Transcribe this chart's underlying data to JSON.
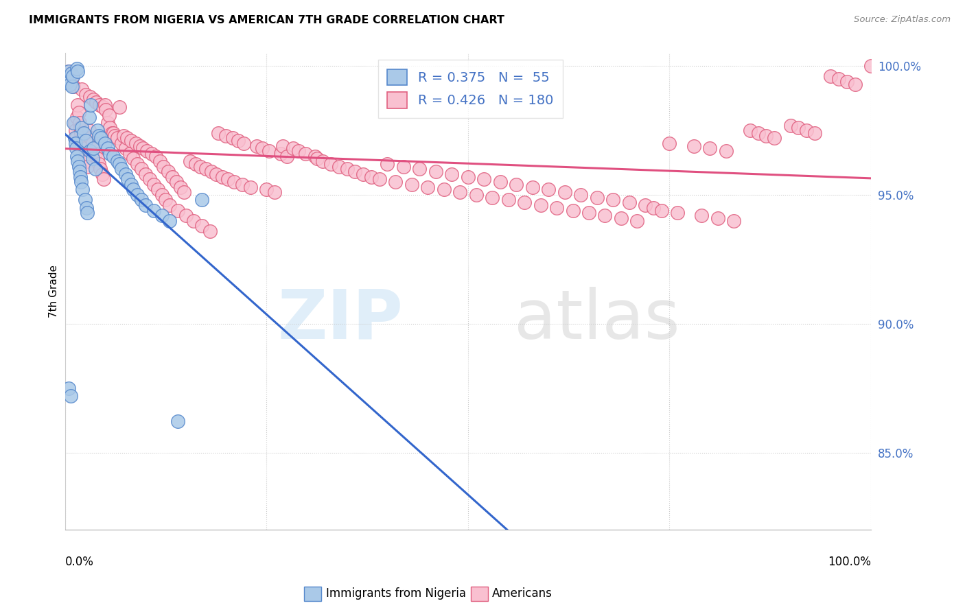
{
  "title": "IMMIGRANTS FROM NIGERIA VS AMERICAN 7TH GRADE CORRELATION CHART",
  "source": "Source: ZipAtlas.com",
  "ylabel": "7th Grade",
  "xlim": [
    0.0,
    1.0
  ],
  "ylim": [
    0.82,
    1.005
  ],
  "yticks": [
    0.85,
    0.9,
    0.95,
    1.0
  ],
  "ytick_labels": [
    "85.0%",
    "90.0%",
    "95.0%",
    "100.0%"
  ],
  "ytick_color": "#4472c4",
  "nigeria_R": 0.375,
  "nigeria_N": 55,
  "american_R": 0.426,
  "american_N": 180,
  "nigeria_color": "#aac9e8",
  "american_color": "#f9c0d0",
  "nigeria_edge_color": "#5588cc",
  "american_edge_color": "#e06080",
  "nigeria_line_color": "#3366cc",
  "american_line_color": "#e05080",
  "legend_label_nigeria": "Immigrants from Nigeria",
  "legend_label_american": "Americans",
  "nigeria_scatter_x": [
    0.003,
    0.005,
    0.005,
    0.006,
    0.007,
    0.008,
    0.009,
    0.01,
    0.011,
    0.012,
    0.013,
    0.014,
    0.015,
    0.015,
    0.016,
    0.016,
    0.017,
    0.018,
    0.019,
    0.02,
    0.021,
    0.022,
    0.023,
    0.025,
    0.026,
    0.027,
    0.028,
    0.03,
    0.031,
    0.032,
    0.034,
    0.035,
    0.038,
    0.04,
    0.042,
    0.045,
    0.05,
    0.053,
    0.056,
    0.06,
    0.065,
    0.068,
    0.07,
    0.075,
    0.078,
    0.082,
    0.085,
    0.09,
    0.095,
    0.1,
    0.11,
    0.12,
    0.13,
    0.14,
    0.17
  ],
  "nigeria_scatter_y": [
    0.994,
    0.998,
    0.875,
    0.993,
    0.872,
    0.997,
    0.992,
    0.996,
    0.978,
    0.972,
    0.97,
    0.968,
    0.965,
    0.999,
    0.963,
    0.998,
    0.961,
    0.959,
    0.957,
    0.955,
    0.976,
    0.952,
    0.974,
    0.948,
    0.971,
    0.945,
    0.943,
    0.98,
    0.967,
    0.985,
    0.964,
    0.968,
    0.96,
    0.975,
    0.973,
    0.972,
    0.97,
    0.968,
    0.966,
    0.965,
    0.963,
    0.962,
    0.96,
    0.958,
    0.956,
    0.954,
    0.952,
    0.95,
    0.948,
    0.946,
    0.944,
    0.942,
    0.94,
    0.862,
    0.948
  ],
  "american_scatter_x": [
    0.005,
    0.006,
    0.008,
    0.009,
    0.01,
    0.011,
    0.012,
    0.013,
    0.014,
    0.015,
    0.016,
    0.017,
    0.018,
    0.019,
    0.02,
    0.021,
    0.022,
    0.023,
    0.024,
    0.025,
    0.026,
    0.027,
    0.028,
    0.03,
    0.031,
    0.032,
    0.034,
    0.035,
    0.036,
    0.038,
    0.039,
    0.04,
    0.042,
    0.043,
    0.044,
    0.046,
    0.047,
    0.048,
    0.05,
    0.051,
    0.053,
    0.055,
    0.056,
    0.058,
    0.06,
    0.062,
    0.065,
    0.068,
    0.07,
    0.073,
    0.075,
    0.077,
    0.08,
    0.082,
    0.085,
    0.088,
    0.09,
    0.093,
    0.095,
    0.097,
    0.1,
    0.102,
    0.105,
    0.108,
    0.11,
    0.113,
    0.115,
    0.118,
    0.12,
    0.122,
    0.125,
    0.128,
    0.13,
    0.133,
    0.138,
    0.14,
    0.143,
    0.148,
    0.15,
    0.155,
    0.16,
    0.162,
    0.168,
    0.17,
    0.175,
    0.18,
    0.182,
    0.188,
    0.19,
    0.195,
    0.2,
    0.202,
    0.208,
    0.21,
    0.215,
    0.22,
    0.222,
    0.23,
    0.238,
    0.245,
    0.25,
    0.253,
    0.26,
    0.268,
    0.27,
    0.275,
    0.283,
    0.29,
    0.298,
    0.31,
    0.313,
    0.32,
    0.33,
    0.34,
    0.35,
    0.36,
    0.37,
    0.38,
    0.39,
    0.4,
    0.41,
    0.42,
    0.43,
    0.44,
    0.45,
    0.46,
    0.47,
    0.48,
    0.49,
    0.5,
    0.51,
    0.52,
    0.53,
    0.54,
    0.55,
    0.56,
    0.57,
    0.58,
    0.59,
    0.6,
    0.61,
    0.62,
    0.63,
    0.64,
    0.65,
    0.66,
    0.67,
    0.68,
    0.69,
    0.7,
    0.71,
    0.72,
    0.73,
    0.74,
    0.75,
    0.76,
    0.78,
    0.79,
    0.8,
    0.81,
    0.82,
    0.83,
    0.85,
    0.86,
    0.87,
    0.88,
    0.9,
    0.91,
    0.92,
    0.93,
    0.95,
    0.96,
    0.97,
    0.98,
    1.0
  ],
  "american_scatter_y": [
    0.998,
    0.994,
    0.997,
    0.993,
    0.996,
    0.992,
    0.978,
    0.975,
    0.972,
    0.98,
    0.985,
    0.982,
    0.978,
    0.976,
    0.974,
    0.991,
    0.972,
    0.97,
    0.968,
    0.965,
    0.989,
    0.963,
    0.961,
    0.975,
    0.988,
    0.972,
    0.97,
    0.987,
    0.968,
    0.966,
    0.986,
    0.964,
    0.962,
    0.985,
    0.96,
    0.958,
    0.984,
    0.956,
    0.985,
    0.983,
    0.978,
    0.981,
    0.976,
    0.974,
    0.974,
    0.973,
    0.972,
    0.984,
    0.97,
    0.973,
    0.968,
    0.972,
    0.966,
    0.971,
    0.964,
    0.97,
    0.962,
    0.969,
    0.96,
    0.968,
    0.958,
    0.967,
    0.956,
    0.966,
    0.954,
    0.965,
    0.952,
    0.963,
    0.95,
    0.961,
    0.948,
    0.959,
    0.946,
    0.957,
    0.955,
    0.944,
    0.953,
    0.951,
    0.942,
    0.963,
    0.94,
    0.962,
    0.961,
    0.938,
    0.96,
    0.936,
    0.959,
    0.958,
    0.974,
    0.957,
    0.973,
    0.956,
    0.972,
    0.955,
    0.971,
    0.954,
    0.97,
    0.953,
    0.969,
    0.968,
    0.952,
    0.967,
    0.951,
    0.966,
    0.969,
    0.965,
    0.968,
    0.967,
    0.966,
    0.965,
    0.964,
    0.963,
    0.962,
    0.961,
    0.96,
    0.959,
    0.958,
    0.957,
    0.956,
    0.962,
    0.955,
    0.961,
    0.954,
    0.96,
    0.953,
    0.959,
    0.952,
    0.958,
    0.951,
    0.957,
    0.95,
    0.956,
    0.949,
    0.955,
    0.948,
    0.954,
    0.947,
    0.953,
    0.946,
    0.952,
    0.945,
    0.951,
    0.944,
    0.95,
    0.943,
    0.949,
    0.942,
    0.948,
    0.941,
    0.947,
    0.94,
    0.946,
    0.945,
    0.944,
    0.97,
    0.943,
    0.969,
    0.942,
    0.968,
    0.941,
    0.967,
    0.94,
    0.975,
    0.974,
    0.973,
    0.972,
    0.977,
    0.976,
    0.975,
    0.974,
    0.996,
    0.995,
    0.994,
    0.993,
    1.0
  ]
}
